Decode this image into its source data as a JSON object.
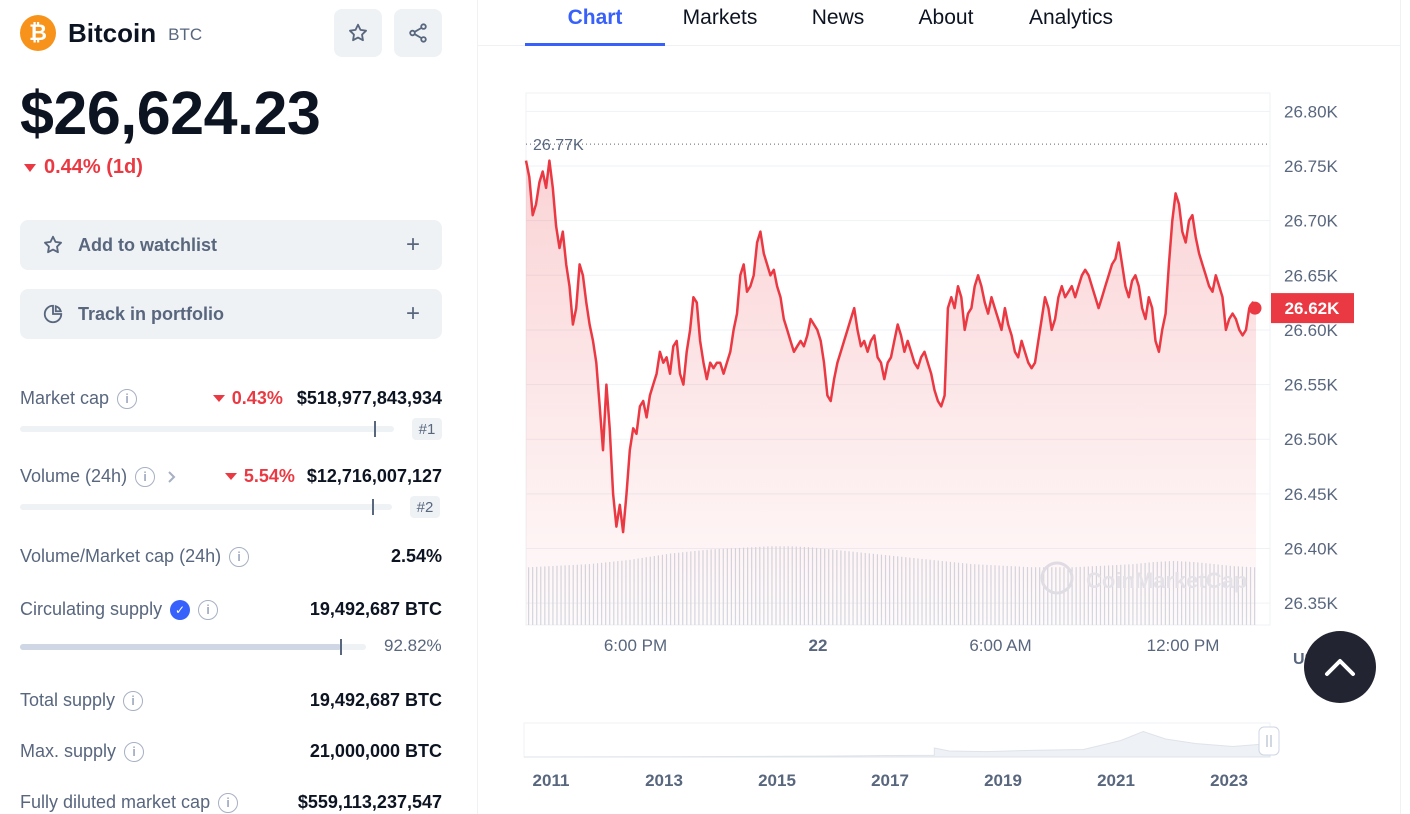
{
  "coin": {
    "logo_glyph": "₿",
    "name": "Bitcoin",
    "symbol": "BTC",
    "price": "$26,624.23",
    "change_1d": "0.44% (1d)",
    "accent_color": "#f7931a",
    "negative_color": "#ea3943"
  },
  "header_buttons": {
    "star_icon": "star-icon",
    "share_icon": "share-icon"
  },
  "actions": {
    "watchlist_label": "Add to watchlist",
    "portfolio_label": "Track in portfolio",
    "plus": "+"
  },
  "stats": {
    "market_cap": {
      "label": "Market cap",
      "change": "0.43%",
      "value": "$518,977,843,934",
      "rank": "#1",
      "bar_fraction": 0.95
    },
    "volume": {
      "label": "Volume (24h)",
      "change": "5.54%",
      "value": "$12,716,007,127",
      "rank": "#2",
      "bar_fraction": 0.95
    },
    "volume_market_cap": {
      "label": "Volume/Market cap (24h)",
      "value": "2.54%"
    },
    "circulating_supply": {
      "label": "Circulating supply",
      "value": "19,492,687 BTC",
      "percent": "92.82%",
      "bar_fraction": 0.9282
    },
    "total_supply": {
      "label": "Total supply",
      "value": "19,492,687 BTC"
    },
    "max_supply": {
      "label": "Max. supply",
      "value": "21,000,000 BTC"
    },
    "fully_diluted": {
      "label": "Fully diluted market cap",
      "value": "$559,113,237,547"
    }
  },
  "tabs": [
    {
      "label": "Chart",
      "active": true
    },
    {
      "label": "Markets",
      "active": false
    },
    {
      "label": "News",
      "active": false
    },
    {
      "label": "About",
      "active": false
    },
    {
      "label": "Analytics",
      "active": false
    }
  ],
  "chart_data": {
    "type": "area",
    "currency_label": "USD",
    "watermark": "CoinMarketCap",
    "high_label": "26.77K",
    "current_label": "26.62K",
    "y_ticks": [
      "26.80K",
      "26.75K",
      "26.70K",
      "26.65K",
      "26.60K",
      "26.55K",
      "26.50K",
      "26.45K",
      "26.40K",
      "26.35K"
    ],
    "y_tick_values": [
      26800,
      26750,
      26700,
      26650,
      26600,
      26550,
      26500,
      26450,
      26400,
      26350
    ],
    "ylim": [
      26330,
      26815
    ],
    "high_value": 26770,
    "current_value": 26620,
    "x_ticks": [
      {
        "label": "6:00 PM",
        "t": 0.15,
        "bold": false
      },
      {
        "label": "22",
        "t": 0.4,
        "bold": true
      },
      {
        "label": "6:00 AM",
        "t": 0.65,
        "bold": false
      },
      {
        "label": "12:00 PM",
        "t": 0.9,
        "bold": false
      }
    ],
    "series": [
      {
        "values": [
          26755,
          26740,
          26705,
          26715,
          26735,
          26745,
          26730,
          26755,
          26730,
          26695,
          26675,
          26690,
          26660,
          26640,
          26605,
          26620,
          26660,
          26650,
          26625,
          26605,
          26590,
          26570,
          26530,
          26490,
          26550,
          26510,
          26450,
          26420,
          26440,
          26415,
          26450,
          26490,
          26510,
          26505,
          26530,
          26535,
          26520,
          26540,
          26550,
          26560,
          26580,
          26570,
          26575,
          26560,
          26585,
          26590,
          26560,
          26550,
          26580,
          26600,
          26630,
          26625,
          26590,
          26570,
          26555,
          26570,
          26565,
          26570,
          26570,
          26560,
          26570,
          26580,
          26600,
          26615,
          26650,
          26660,
          26635,
          26640,
          26650,
          26680,
          26690,
          26670,
          26660,
          26650,
          26655,
          26640,
          26630,
          26610,
          26600,
          26590,
          26580,
          26585,
          26590,
          26585,
          26595,
          26610,
          26605,
          26600,
          26590,
          26570,
          26540,
          26535,
          26555,
          26570,
          26580,
          26590,
          26600,
          26610,
          26620,
          26600,
          26585,
          26590,
          26580,
          26590,
          26595,
          26575,
          26570,
          26555,
          26570,
          26575,
          26590,
          26605,
          26595,
          26580,
          26590,
          26580,
          26570,
          26565,
          26575,
          26580,
          26570,
          26560,
          26545,
          26535,
          26530,
          26540,
          26620,
          26630,
          26620,
          26640,
          26630,
          26600,
          26615,
          26620,
          26640,
          26650,
          26640,
          26625,
          26615,
          26630,
          26620,
          26610,
          26600,
          26620,
          26605,
          26595,
          26580,
          26575,
          26590,
          26580,
          26570,
          26565,
          26570,
          26590,
          26610,
          26630,
          26620,
          26600,
          26610,
          26630,
          26640,
          26630,
          26635,
          26640,
          26630,
          26640,
          26650,
          26655,
          26650,
          26640,
          26630,
          26620,
          26630,
          26640,
          26650,
          26660,
          26665,
          26680,
          26660,
          26640,
          26630,
          26645,
          26650,
          26640,
          26620,
          26610,
          26630,
          26620,
          26590,
          26580,
          26600,
          26615,
          26660,
          26700,
          26725,
          26715,
          26690,
          26680,
          26700,
          26705,
          26685,
          26670,
          26660,
          26650,
          26640,
          26635,
          26650,
          26640,
          26630,
          26600,
          26610,
          26615,
          26610,
          26600,
          26595,
          26600,
          26620,
          26625,
          26622
        ]
      }
    ],
    "volume_bars": [
      0.55,
      0.56,
      0.57,
      0.58,
      0.6,
      0.62,
      0.65,
      0.68,
      0.7,
      0.72,
      0.73,
      0.74,
      0.75,
      0.75,
      0.74,
      0.72,
      0.7,
      0.68,
      0.66,
      0.64,
      0.62,
      0.6,
      0.58,
      0.57,
      0.56,
      0.55,
      0.55,
      0.55,
      0.56,
      0.57,
      0.58,
      0.6,
      0.61,
      0.6,
      0.58,
      0.56,
      0.55
    ],
    "history_years": [
      "2011",
      "2013",
      "2015",
      "2017",
      "2019",
      "2021",
      "2023"
    ]
  }
}
